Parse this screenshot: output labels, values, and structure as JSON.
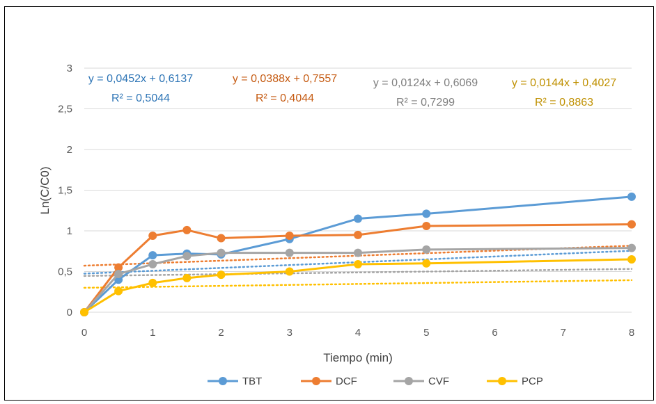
{
  "chart_data": {
    "type": "line",
    "xlabel": "Tiempo (min)",
    "ylabel": "Ln(C/C0)",
    "categories": [
      "0",
      "1",
      "2",
      "3",
      "4",
      "5",
      "6",
      "7",
      "8"
    ],
    "x_ticks": [
      "0",
      "1",
      "2",
      "3",
      "4",
      "5",
      "6",
      "7",
      "8"
    ],
    "y_ticks": [
      "0",
      "0,5",
      "1",
      "1,5",
      "2",
      "2,5",
      "3"
    ],
    "ylim": [
      0,
      3
    ],
    "grid": "horizontal",
    "legend_position": "bottom",
    "x": [
      0,
      0.5,
      1,
      1.5,
      2,
      3,
      4,
      5,
      8
    ],
    "series": [
      {
        "name": "TBT",
        "color": "#5B9BD5",
        "values": [
          0,
          0.4,
          0.7,
          0.72,
          0.71,
          0.9,
          1.15,
          1.21,
          1.42
        ],
        "trendline": {
          "slope": 0.0452,
          "intercept": 0.6137
        },
        "equation": "y = 0,0452x + 0,6137",
        "r2": "R² = 0,5044"
      },
      {
        "name": "DCF",
        "color": "#ED7D31",
        "values": [
          0,
          0.55,
          0.94,
          1.01,
          0.91,
          0.94,
          0.95,
          1.06,
          1.08
        ],
        "trendline": {
          "slope": 0.0388,
          "intercept": 0.7557
        },
        "equation": "y = 0,0388x + 0,7557",
        "r2": "R² = 0,4044"
      },
      {
        "name": "CVF",
        "color": "#A5A5A5",
        "values": [
          0,
          0.47,
          0.59,
          0.69,
          0.73,
          0.73,
          0.73,
          0.77,
          0.79
        ],
        "trendline": {
          "slope": 0.0124,
          "intercept": 0.6069
        },
        "equation": "y = 0,0124x + 0,6069",
        "r2": "R² = 0,7299"
      },
      {
        "name": "PCP",
        "color": "#FFC000",
        "values": [
          0,
          0.26,
          0.36,
          0.42,
          0.46,
          0.5,
          0.59,
          0.6,
          0.65
        ],
        "trendline": {
          "slope": 0.0144,
          "intercept": 0.4027
        },
        "equation": "y = 0,0144x + 0,4027",
        "r2": "R² = 0,8863"
      }
    ]
  },
  "equation_colors": {
    "TBT": "#2E75B6",
    "DCF": "#C55A11",
    "CVF": "#7F7F7F",
    "PCP": "#BF9000"
  }
}
